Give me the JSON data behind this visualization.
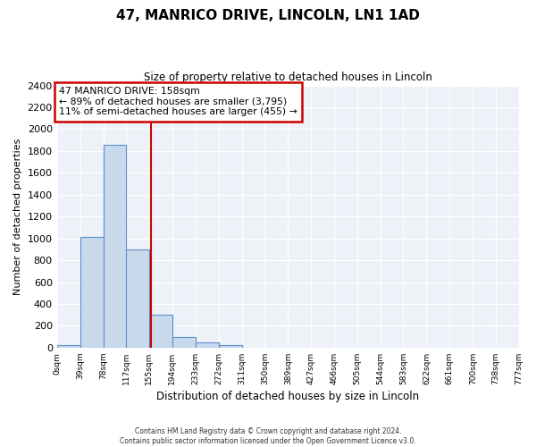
{
  "title": "47, MANRICO DRIVE, LINCOLN, LN1 1AD",
  "subtitle": "Size of property relative to detached houses in Lincoln",
  "xlabel": "Distribution of detached houses by size in Lincoln",
  "ylabel": "Number of detached properties",
  "bar_edges": [
    0,
    39,
    78,
    117,
    155,
    194,
    233,
    272,
    311,
    350,
    389,
    427,
    466,
    505,
    544,
    583,
    622,
    661,
    700,
    738,
    777
  ],
  "bar_heights": [
    20,
    1010,
    1860,
    900,
    300,
    100,
    45,
    20,
    0,
    0,
    0,
    0,
    0,
    0,
    0,
    0,
    0,
    0,
    0,
    0
  ],
  "bar_color": "#c8d9ec",
  "bar_edge_color": "#5b8fc9",
  "property_line_x": 158,
  "property_line_color": "#cc0000",
  "ylim": [
    0,
    2400
  ],
  "yticks": [
    0,
    200,
    400,
    600,
    800,
    1000,
    1200,
    1400,
    1600,
    1800,
    2000,
    2200,
    2400
  ],
  "xtick_labels": [
    "0sqm",
    "39sqm",
    "78sqm",
    "117sqm",
    "155sqm",
    "194sqm",
    "233sqm",
    "272sqm",
    "311sqm",
    "350sqm",
    "389sqm",
    "427sqm",
    "466sqm",
    "505sqm",
    "544sqm",
    "583sqm",
    "622sqm",
    "661sqm",
    "700sqm",
    "738sqm",
    "777sqm"
  ],
  "annotation_title": "47 MANRICO DRIVE: 158sqm",
  "annotation_line1": "← 89% of detached houses are smaller (3,795)",
  "annotation_line2": "11% of semi-detached houses are larger (455) →",
  "footer1": "Contains HM Land Registry data © Crown copyright and database right 2024.",
  "footer2": "Contains public sector information licensed under the Open Government Licence v3.0.",
  "background_color": "#ffffff",
  "plot_bg_color": "#eef2f8",
  "grid_color": "#ffffff"
}
